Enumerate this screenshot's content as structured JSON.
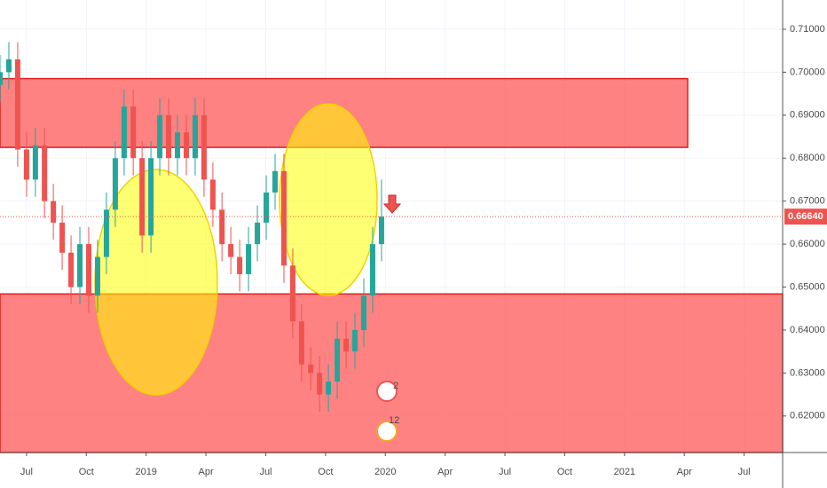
{
  "chart_data": {
    "type": "candlestick",
    "x": [
      2018.389,
      2018.426,
      2018.463,
      2018.5,
      2018.537,
      2018.575,
      2018.612,
      2018.649,
      2018.686,
      2018.723,
      2018.76,
      2018.797,
      2018.834,
      2018.871,
      2018.908,
      2018.946,
      2018.983,
      2019.02,
      2019.057,
      2019.094,
      2019.131,
      2019.168,
      2019.205,
      2019.242,
      2019.279,
      2019.317,
      2019.354,
      2019.391,
      2019.428,
      2019.465,
      2019.502,
      2019.539,
      2019.576,
      2019.613,
      2019.65,
      2019.688,
      2019.725,
      2019.762,
      2019.799,
      2019.836,
      2019.873,
      2019.91,
      2019.947,
      2019.984
    ],
    "open": [
      0.697,
      0.7,
      0.703,
      0.682,
      0.675,
      0.683,
      0.67,
      0.665,
      0.658,
      0.65,
      0.66,
      0.648,
      0.657,
      0.668,
      0.68,
      0.692,
      0.68,
      0.662,
      0.68,
      0.69,
      0.68,
      0.686,
      0.68,
      0.69,
      0.675,
      0.668,
      0.66,
      0.657,
      0.653,
      0.66,
      0.665,
      0.672,
      0.677,
      0.655,
      0.642,
      0.632,
      0.63,
      0.625,
      0.628,
      0.638,
      0.635,
      0.64,
      0.648,
      0.66
    ],
    "high": [
      0.704,
      0.707,
      0.707,
      0.686,
      0.687,
      0.687,
      0.674,
      0.669,
      0.662,
      0.664,
      0.664,
      0.661,
      0.672,
      0.684,
      0.696,
      0.696,
      0.684,
      0.684,
      0.694,
      0.694,
      0.69,
      0.69,
      0.694,
      0.694,
      0.679,
      0.672,
      0.664,
      0.661,
      0.664,
      0.669,
      0.676,
      0.681,
      0.681,
      0.659,
      0.646,
      0.636,
      0.634,
      0.632,
      0.642,
      0.642,
      0.644,
      0.652,
      0.664,
      0.675
    ],
    "low": [
      0.693,
      0.696,
      0.678,
      0.671,
      0.671,
      0.666,
      0.661,
      0.654,
      0.646,
      0.646,
      0.644,
      0.644,
      0.653,
      0.664,
      0.676,
      0.676,
      0.658,
      0.658,
      0.676,
      0.676,
      0.676,
      0.676,
      0.676,
      0.671,
      0.664,
      0.656,
      0.653,
      0.649,
      0.649,
      0.656,
      0.661,
      0.668,
      0.651,
      0.638,
      0.628,
      0.626,
      0.621,
      0.621,
      0.624,
      0.631,
      0.631,
      0.636,
      0.644,
      0.656
    ],
    "close": [
      0.7,
      0.703,
      0.682,
      0.675,
      0.683,
      0.67,
      0.665,
      0.658,
      0.65,
      0.66,
      0.648,
      0.657,
      0.668,
      0.68,
      0.692,
      0.68,
      0.662,
      0.68,
      0.69,
      0.68,
      0.686,
      0.68,
      0.69,
      0.675,
      0.668,
      0.66,
      0.657,
      0.653,
      0.66,
      0.665,
      0.672,
      0.677,
      0.655,
      0.642,
      0.632,
      0.63,
      0.625,
      0.628,
      0.638,
      0.635,
      0.64,
      0.648,
      0.66,
      0.6664
    ],
    "up_color": "#26a69a",
    "down_color": "#ef5350",
    "xlim": [
      2018.389,
      2021.661
    ],
    "xticks": [
      {
        "value": 2018.5,
        "label": "Jul"
      },
      {
        "value": 2018.75,
        "label": "Oct"
      },
      {
        "value": 2019.0,
        "label": "2019"
      },
      {
        "value": 2019.25,
        "label": "Apr"
      },
      {
        "value": 2019.5,
        "label": "Jul"
      },
      {
        "value": 2019.75,
        "label": "Oct"
      },
      {
        "value": 2020.0,
        "label": "2020"
      },
      {
        "value": 2020.25,
        "label": "Apr"
      },
      {
        "value": 2020.5,
        "label": "Jul"
      },
      {
        "value": 2020.75,
        "label": "Oct"
      },
      {
        "value": 2021.0,
        "label": "2021"
      },
      {
        "value": 2021.25,
        "label": "Apr"
      },
      {
        "value": 2021.5,
        "label": "Jul"
      }
    ],
    "ylim": [
      0.6115,
      0.7168
    ],
    "yticks": [
      {
        "value": 0.62,
        "label": "0.62000"
      },
      {
        "value": 0.63,
        "label": "0.63000"
      },
      {
        "value": 0.64,
        "label": "0.64000"
      },
      {
        "value": 0.65,
        "label": "0.65000"
      },
      {
        "value": 0.66,
        "label": "0.66000"
      },
      {
        "value": 0.67,
        "label": "0.67000"
      },
      {
        "value": 0.68,
        "label": "0.68000"
      },
      {
        "value": 0.69,
        "label": "0.69000"
      },
      {
        "value": 0.7,
        "label": "0.70000"
      },
      {
        "value": 0.71,
        "label": "0.71000"
      }
    ],
    "grid": true,
    "price_line": {
      "value": 0.6664,
      "label": "0.66640"
    },
    "events": [
      "2",
      "12"
    ]
  }
}
